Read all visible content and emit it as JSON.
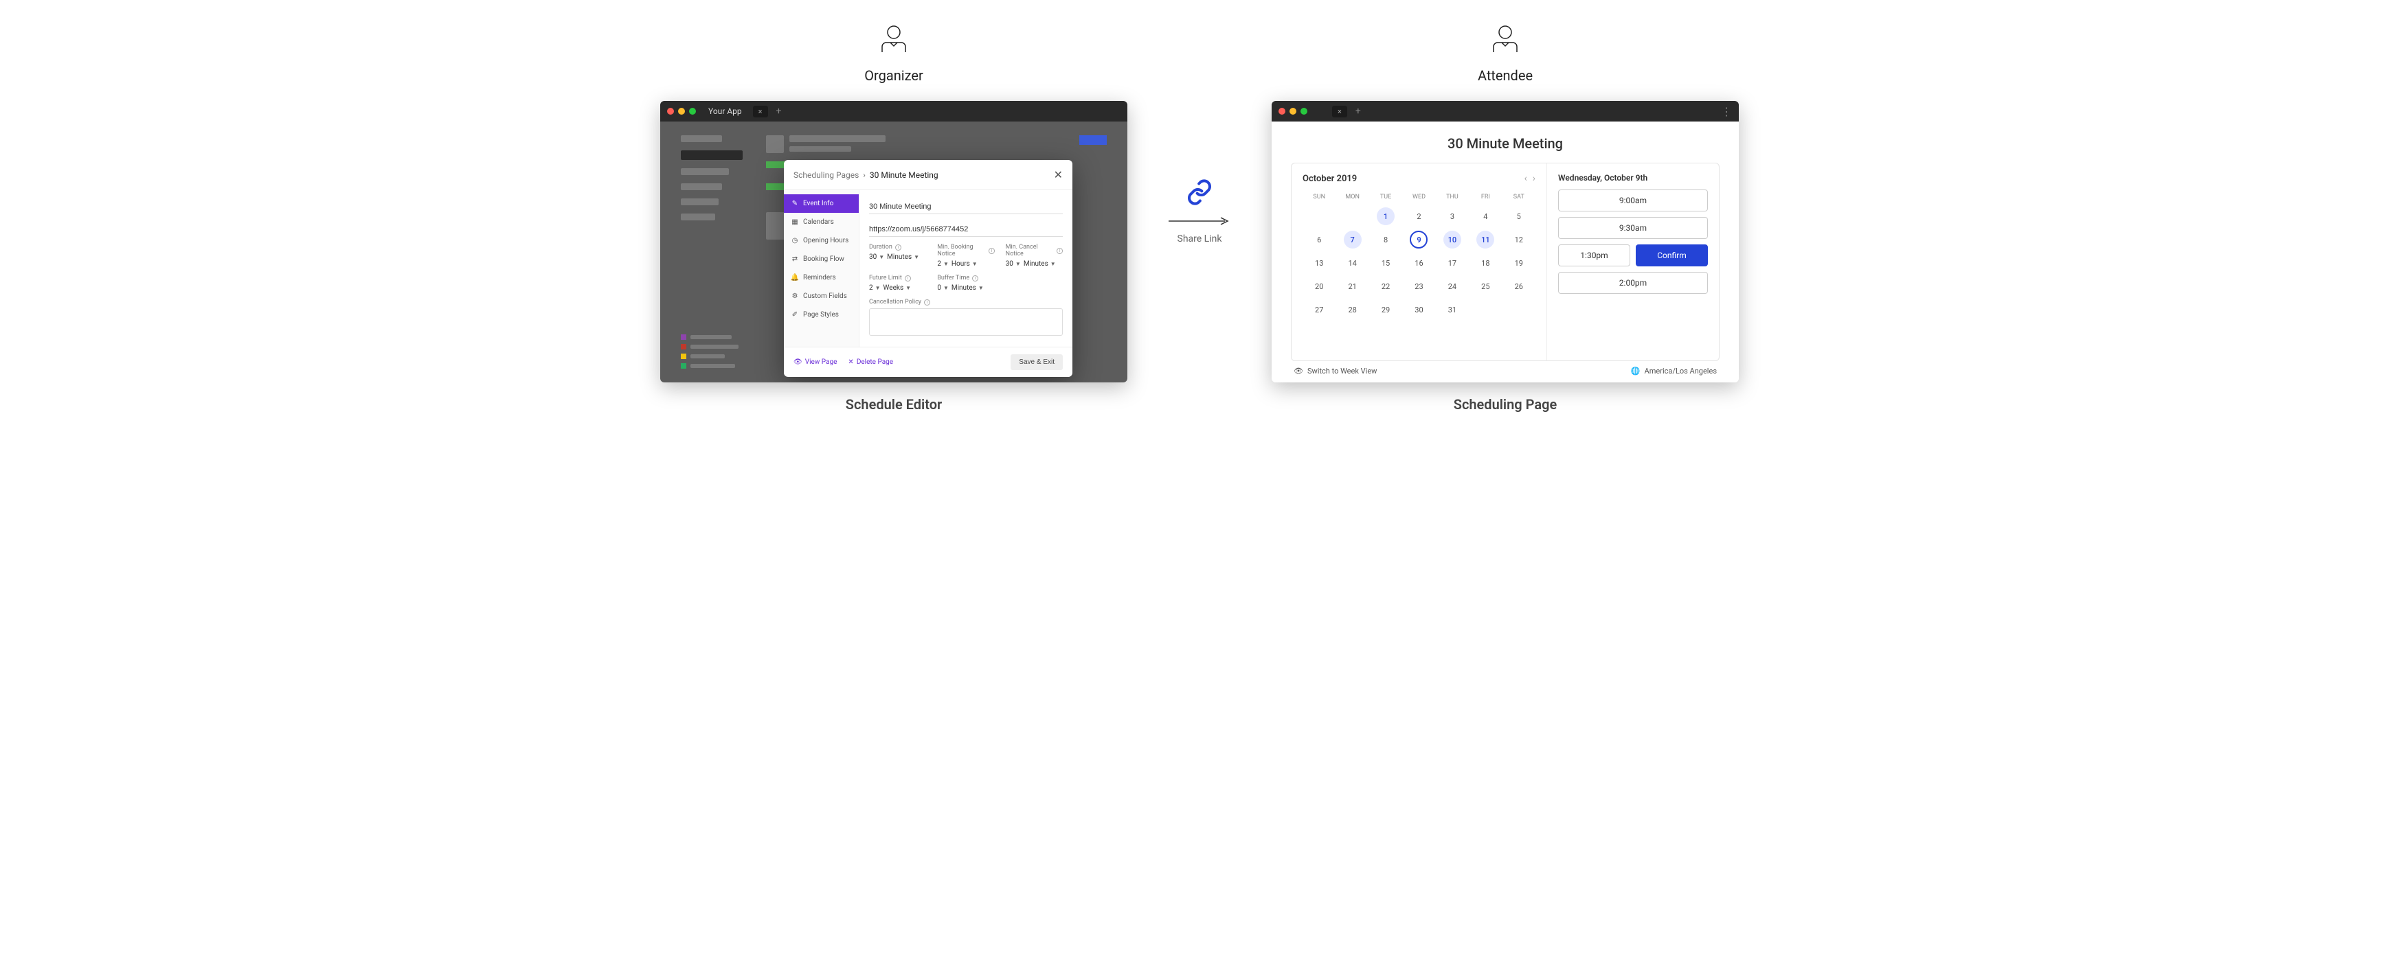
{
  "roles": {
    "organizer": "Organizer",
    "attendee": "Attendee"
  },
  "captions": {
    "editor": "Schedule Editor",
    "page": "Scheduling Page"
  },
  "share": {
    "label": "Share Link"
  },
  "editor_window": {
    "app_title": "Your App",
    "modal": {
      "breadcrumb_root": "Scheduling Pages",
      "breadcrumb_sep": "›",
      "breadcrumb_current": "30 Minute Meeting",
      "nav": {
        "event_info": "Event Info",
        "calendars": "Calendars",
        "opening_hours": "Opening Hours",
        "booking_flow": "Booking Flow",
        "reminders": "Reminders",
        "custom_fields": "Custom Fields",
        "page_styles": "Page Styles"
      },
      "form": {
        "title_value": "30 Minute Meeting",
        "url_value": "https://zoom.us/j/5668774452",
        "duration_label": "Duration",
        "duration_val": "30",
        "duration_unit": "Minutes",
        "min_booking_label": "Min. Booking Notice",
        "min_booking_val": "2",
        "min_booking_unit": "Hours",
        "min_cancel_label": "Min. Cancel Notice",
        "min_cancel_val": "30",
        "min_cancel_unit": "Minutes",
        "future_limit_label": "Future Limit",
        "future_limit_val": "2",
        "future_limit_unit": "Weeks",
        "buffer_label": "Buffer Time",
        "buffer_val": "0",
        "buffer_unit": "Minutes",
        "cancel_policy_label": "Cancellation Policy"
      },
      "footer": {
        "view": "View Page",
        "delete": "Delete Page",
        "save": "Save & Exit"
      }
    }
  },
  "scheduling_page": {
    "title": "30 Minute Meeting",
    "month_label": "October 2019",
    "dow": [
      "SUN",
      "MON",
      "TUE",
      "WED",
      "THU",
      "FRI",
      "SAT"
    ],
    "weeks": [
      [
        {
          "n": ""
        },
        {
          "n": ""
        },
        {
          "n": "1",
          "avail": true
        },
        {
          "n": "2"
        },
        {
          "n": "3"
        },
        {
          "n": "4"
        },
        {
          "n": "5"
        }
      ],
      [
        {
          "n": "6"
        },
        {
          "n": "7",
          "avail": true
        },
        {
          "n": "8"
        },
        {
          "n": "9",
          "selected": true
        },
        {
          "n": "10",
          "avail": true
        },
        {
          "n": "11",
          "avail": true
        },
        {
          "n": "12"
        }
      ],
      [
        {
          "n": "13"
        },
        {
          "n": "14"
        },
        {
          "n": "15"
        },
        {
          "n": "16"
        },
        {
          "n": "17"
        },
        {
          "n": "18"
        },
        {
          "n": "19"
        }
      ],
      [
        {
          "n": "20"
        },
        {
          "n": "21"
        },
        {
          "n": "22"
        },
        {
          "n": "23"
        },
        {
          "n": "24"
        },
        {
          "n": "25"
        },
        {
          "n": "26"
        }
      ],
      [
        {
          "n": "27"
        },
        {
          "n": "28"
        },
        {
          "n": "29"
        },
        {
          "n": "30"
        },
        {
          "n": "31"
        },
        {
          "n": ""
        },
        {
          "n": ""
        }
      ]
    ],
    "selected_date": "Wednesday, October 9th",
    "slots": {
      "s1": "9:00am",
      "s2": "9:30am",
      "s3": "1:30pm",
      "confirm": "Confirm",
      "s4": "2:00pm"
    },
    "footer": {
      "switch_view": "Switch to Week View",
      "timezone": "America/Los Angeles"
    }
  }
}
